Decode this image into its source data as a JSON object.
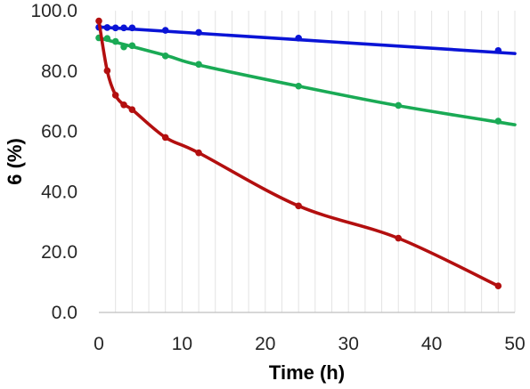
{
  "chart_data": {
    "type": "scatter",
    "title": "",
    "xlabel": "Time (h)",
    "ylabel": "6 (%)",
    "xlim": [
      0,
      50
    ],
    "ylim": [
      0,
      100
    ],
    "x_ticks": [
      0,
      10,
      20,
      30,
      40,
      50
    ],
    "x_tick_labels": [
      "0",
      "10",
      "20",
      "30",
      "40",
      "50"
    ],
    "y_ticks": [
      0,
      20,
      40,
      60,
      80,
      100
    ],
    "y_tick_labels": [
      "0.0",
      "20.0",
      "40.0",
      "60.0",
      "80.0",
      "100.0"
    ],
    "x_minor_grid_step": 2,
    "grid": "vertical",
    "legend": "none",
    "series": [
      {
        "color": "#0a14d6",
        "points": [
          [
            0,
            94.5
          ],
          [
            1,
            94.4
          ],
          [
            2,
            94.3
          ],
          [
            3,
            94.3
          ],
          [
            4,
            94.3
          ],
          [
            8,
            93.5
          ],
          [
            12,
            92.8
          ],
          [
            24,
            90.9
          ],
          [
            48,
            86.8
          ]
        ],
        "trend": [
          [
            0,
            94.6
          ],
          [
            50,
            85.8
          ]
        ]
      },
      {
        "color": "#1aaa55",
        "points": [
          [
            0,
            91.0
          ],
          [
            1,
            90.8
          ],
          [
            2,
            89.8
          ],
          [
            3,
            88.0
          ],
          [
            4,
            88.4
          ],
          [
            8,
            85.0
          ],
          [
            12,
            82.2
          ],
          [
            24,
            75.0
          ],
          [
            36,
            68.6
          ],
          [
            48,
            63.4
          ]
        ],
        "trend": [
          [
            0,
            91.0
          ],
          [
            8,
            85.2
          ],
          [
            12,
            82.0
          ],
          [
            24,
            75.0
          ],
          [
            36,
            68.5
          ],
          [
            50,
            62.2
          ]
        ]
      },
      {
        "color": "#b30f0f",
        "points": [
          [
            0,
            96.6
          ],
          [
            1,
            80.1
          ],
          [
            2,
            72.0
          ],
          [
            3,
            68.8
          ],
          [
            4,
            67.2
          ],
          [
            8,
            58.0
          ],
          [
            12,
            52.9
          ],
          [
            24,
            35.3
          ],
          [
            36,
            24.6
          ],
          [
            48,
            8.8
          ]
        ],
        "trend": [
          [
            0,
            96.6
          ],
          [
            1,
            80.1
          ],
          [
            2,
            72.0
          ],
          [
            3,
            68.8
          ],
          [
            4,
            67.2
          ],
          [
            8,
            58.0
          ],
          [
            12,
            52.9
          ],
          [
            24,
            35.3
          ],
          [
            36,
            24.6
          ],
          [
            48,
            8.8
          ]
        ]
      }
    ]
  }
}
